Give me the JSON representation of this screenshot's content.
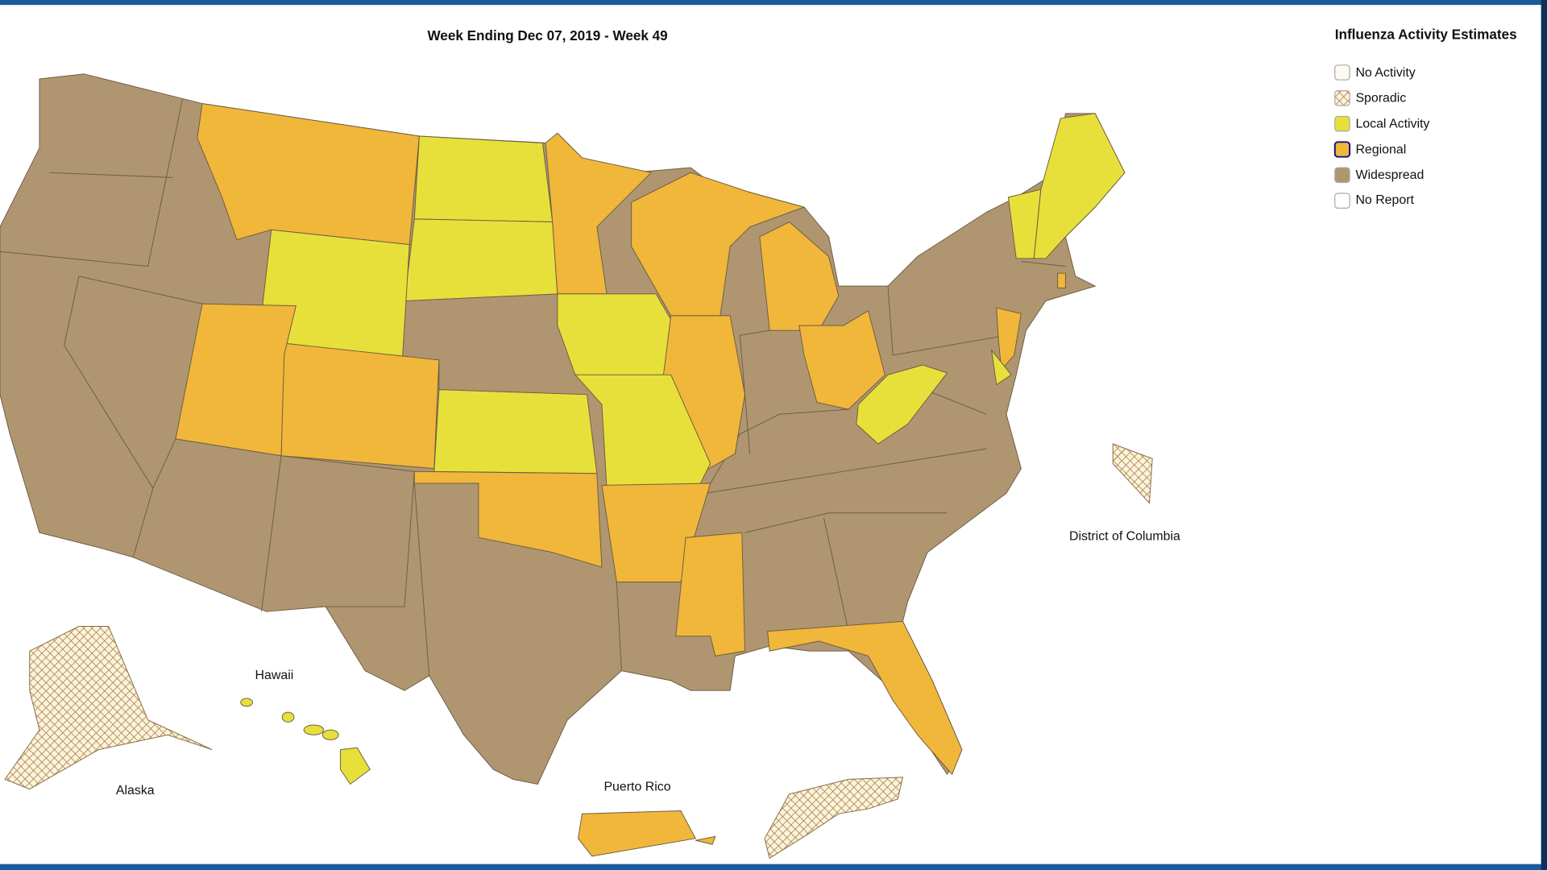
{
  "title": "Week Ending Dec 07, 2019 - Week 49",
  "legend": {
    "title": "Influenza Activity Estimates",
    "items": [
      "No Activity",
      "Sporadic",
      "Local Activity",
      "Regional",
      "Widespread",
      "No Report"
    ]
  },
  "map_labels": [
    "Hawaii",
    "Alaska",
    "Puerto Rico",
    "District of Columbia"
  ]
}
